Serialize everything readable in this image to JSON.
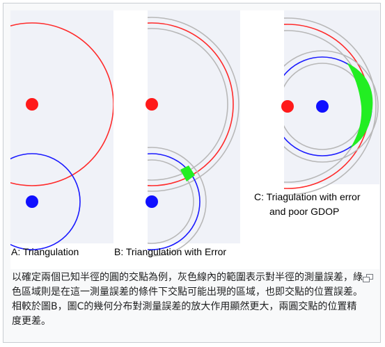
{
  "panels": [
    {
      "label": "A: Triangulation"
    },
    {
      "label": "B: Triangulation with Error"
    },
    {
      "label_line1": "C: Triagulation with error",
      "label_line2": "and poor GDOP"
    }
  ],
  "caption": "以確定兩個已知半徑的圓的交點為例，灰色線內的範圍表示對半徑的測量誤差，綠色區域則是在這一測量誤差的條件下交點可能出現的區域，也即交點的位置誤差。相較於圖B，圖C的幾何分布對測量誤差的放大作用顯然更大，兩圓交點的位置精度更差。",
  "colors": {
    "red": "#ff2a2a",
    "blue": "#1a1aff",
    "gray": "#b8b8b8",
    "green": "#22ee22",
    "panel_bg": "#f0f2f8"
  },
  "icons": {
    "enlarge": "enlarge-icon"
  }
}
